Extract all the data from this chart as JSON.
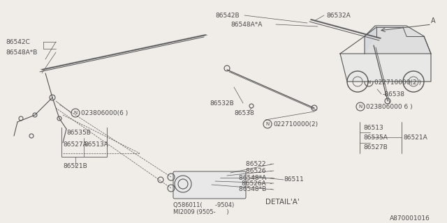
{
  "bg_color": "#f0ede8",
  "line_color": "#4a4a4a",
  "fig_width": 6.4,
  "fig_height": 3.2,
  "diagram_ref": "A870001016",
  "parts": {
    "left_blade": {
      "label": "86542C",
      "sublabel": "86548A*B"
    },
    "mid_blade": {
      "label": "86542B",
      "sublabel": "86548A*A"
    },
    "right_arm_label": "86532A",
    "mid_arm_label_a": "86532B",
    "mid_arm_label_b": "86538",
    "nut_mid": "N022710000(2)",
    "nut_left": "N023806000(6 )",
    "left_box_top": "86535B",
    "left_box_bl": "86527A",
    "left_box_br": "86513A",
    "left_box_bot": "86521B",
    "detail_parts": [
      "86522",
      "86526",
      "86548*A",
      "86526A",
      "86548*B"
    ],
    "detail_right": "86511",
    "detail_q1": "Q58601 1(      -9504)",
    "detail_q2": "MI2009  (9505-      )",
    "detail_label": "DETAIL'A'",
    "right_nut1": "N022710000(2 )",
    "right_538": "-86538",
    "right_nut2": "N023806000 6 )",
    "right_513": "86513",
    "right_535a": "86535A",
    "right_527b": "86527B",
    "right_521a": "86521A"
  },
  "colors": {
    "diagram_gray": "#888888",
    "light_gray": "#bbbbbb",
    "dark": "#333333",
    "bg": "#f0ede8"
  }
}
